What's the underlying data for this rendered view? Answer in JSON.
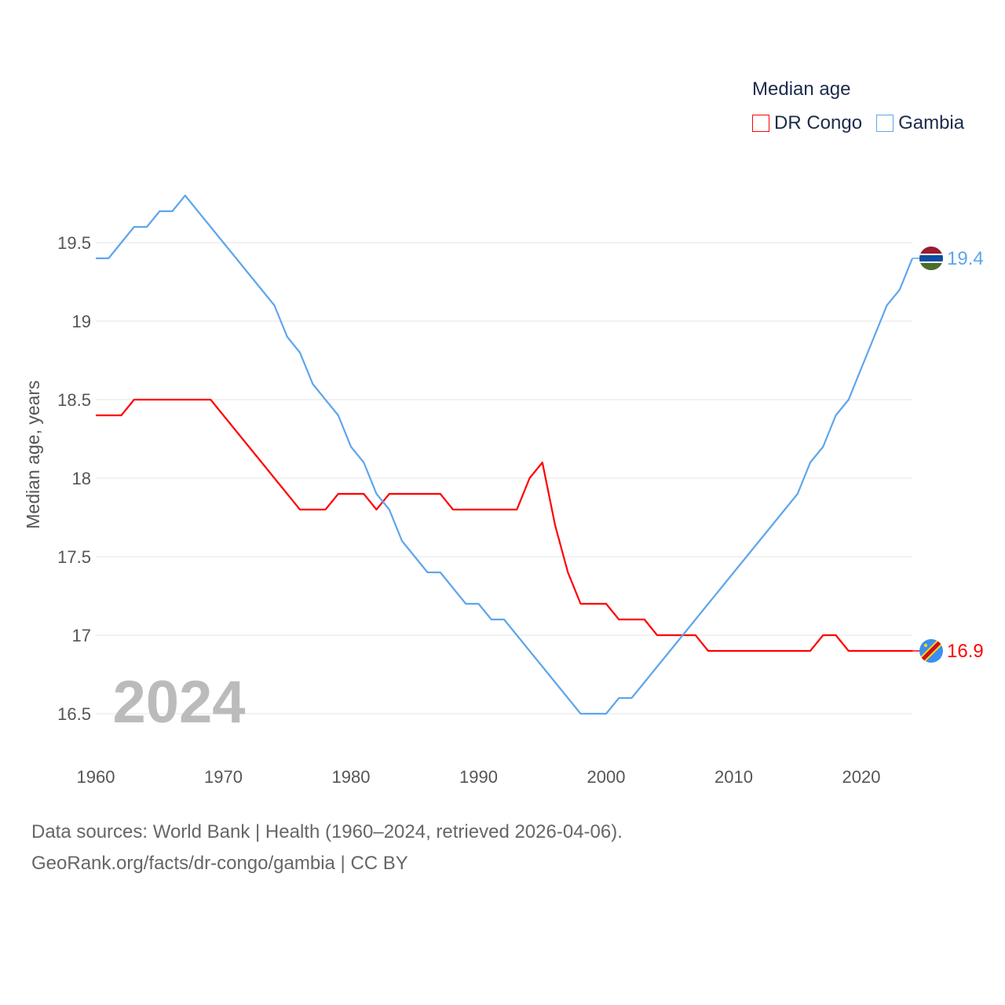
{
  "chart_data": {
    "type": "line",
    "title": "Median age",
    "ylabel": "Median age, years",
    "xlabel": "",
    "xlim": [
      1960,
      2024
    ],
    "ylim": [
      16.2,
      20.0
    ],
    "x_ticks": [
      1960,
      1970,
      1980,
      1990,
      2000,
      2010,
      2020
    ],
    "y_ticks": [
      16.5,
      17,
      17.5,
      18,
      18.5,
      19,
      19.5
    ],
    "y_tick_labels": [
      "16.5",
      "17",
      "17.5",
      "18",
      "18.5",
      "19",
      "19.5"
    ],
    "x_tick_labels": [
      "1960",
      "1970",
      "1980",
      "1990",
      "2000",
      "2010",
      "2020"
    ],
    "grid": true,
    "legend_position": "top-right",
    "year_label": "2024",
    "x_start": 1960,
    "series": [
      {
        "name": "DR Congo",
        "color": "#ff0000",
        "end_label": "16.9",
        "flag": "dr-congo-flag",
        "values": [
          18.4,
          18.4,
          18.4,
          18.5,
          18.5,
          18.5,
          18.5,
          18.5,
          18.5,
          18.5,
          18.4,
          18.3,
          18.2,
          18.1,
          18.0,
          17.9,
          17.8,
          17.8,
          17.8,
          17.9,
          17.9,
          17.9,
          17.8,
          17.9,
          17.9,
          17.9,
          17.9,
          17.9,
          17.8,
          17.8,
          17.8,
          17.8,
          17.8,
          17.8,
          18.0,
          18.1,
          17.7,
          17.4,
          17.2,
          17.2,
          17.2,
          17.1,
          17.1,
          17.1,
          17.0,
          17.0,
          17.0,
          17.0,
          16.9,
          16.9,
          16.9,
          16.9,
          16.9,
          16.9,
          16.9,
          16.9,
          16.9,
          17.0,
          17.0,
          16.9,
          16.9,
          16.9,
          16.9,
          16.9,
          16.9
        ]
      },
      {
        "name": "Gambia",
        "color": "#5ea5ee",
        "end_label": "19.4",
        "flag": "gambia-flag",
        "values": [
          19.4,
          19.4,
          19.5,
          19.6,
          19.6,
          19.7,
          19.7,
          19.8,
          19.7,
          19.6,
          19.5,
          19.4,
          19.3,
          19.2,
          19.1,
          18.9,
          18.8,
          18.6,
          18.5,
          18.4,
          18.2,
          18.1,
          17.9,
          17.8,
          17.6,
          17.5,
          17.4,
          17.4,
          17.3,
          17.2,
          17.2,
          17.1,
          17.1,
          17.0,
          16.9,
          16.8,
          16.7,
          16.6,
          16.5,
          16.5,
          16.5,
          16.6,
          16.6,
          16.7,
          16.8,
          16.9,
          17.0,
          17.1,
          17.2,
          17.3,
          17.4,
          17.5,
          17.6,
          17.7,
          17.8,
          17.9,
          18.1,
          18.2,
          18.4,
          18.5,
          18.7,
          18.9,
          19.1,
          19.2,
          19.4
        ]
      }
    ]
  },
  "source": {
    "line1": "Data sources: World Bank | Health (1960–2024, retrieved 2026-04-06).",
    "line2": "GeoRank.org/facts/dr-congo/gambia | CC BY"
  }
}
